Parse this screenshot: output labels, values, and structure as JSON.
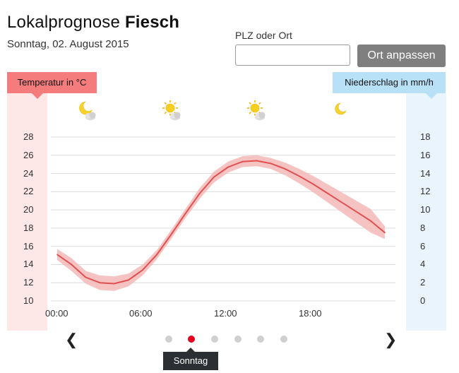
{
  "header": {
    "title_prefix": "Lokalprognose",
    "title_location": "Fiesch",
    "date": "Sonntag, 02. August 2015"
  },
  "search": {
    "label": "PLZ oder Ort",
    "value": "",
    "placeholder": "",
    "button_label": "Ort anpassen"
  },
  "legend": {
    "temperature_label": "Temperatur in °C",
    "precipitation_label": "Niederschlag in mm/h"
  },
  "weather_icons": [
    {
      "time": "03:00",
      "icon": "moon-cloud-icon"
    },
    {
      "time": "09:00",
      "icon": "sun-cloud-icon"
    },
    {
      "time": "15:00",
      "icon": "sun-cloud-icon"
    },
    {
      "time": "21:00",
      "icon": "moon-icon"
    }
  ],
  "chart_data": {
    "type": "line",
    "x_tick_labels": [
      "00:00",
      "06:00",
      "12:00",
      "18:00"
    ],
    "x_range_hours": [
      0,
      24
    ],
    "y_left": {
      "label": "Temperatur in °C",
      "ticks": [
        "10",
        "12",
        "14",
        "16",
        "18",
        "20",
        "22",
        "24",
        "26",
        "28"
      ],
      "range": [
        10,
        28
      ]
    },
    "y_right": {
      "label": "Niederschlag in mm/h",
      "ticks": [
        "0",
        "2",
        "4",
        "6",
        "8",
        "10",
        "12",
        "14",
        "16",
        "18"
      ],
      "range": [
        0,
        18
      ]
    },
    "grid": true,
    "series": [
      {
        "x": [
          0,
          1,
          2,
          3,
          4,
          5,
          6,
          7,
          8,
          9,
          10,
          11,
          12,
          13,
          14,
          15,
          16,
          17,
          18,
          19,
          20,
          21,
          22,
          23
        ],
        "values": [
          15.1,
          14.0,
          12.6,
          12.0,
          11.9,
          12.3,
          13.4,
          15.1,
          17.3,
          19.6,
          21.8,
          23.6,
          24.7,
          25.3,
          25.4,
          25.1,
          24.5,
          23.7,
          22.8,
          21.8,
          20.8,
          19.8,
          18.8,
          17.5
        ],
        "lower": [
          14.5,
          13.3,
          11.9,
          11.2,
          11.1,
          11.6,
          12.8,
          14.6,
          16.8,
          19.1,
          21.2,
          23.0,
          24.1,
          24.7,
          24.8,
          24.5,
          23.8,
          22.9,
          21.9,
          20.8,
          19.7,
          18.6,
          17.5,
          16.8
        ],
        "upper": [
          15.7,
          14.7,
          13.3,
          12.8,
          12.7,
          13.0,
          14.0,
          15.6,
          17.8,
          20.1,
          22.4,
          24.2,
          25.3,
          25.9,
          26.0,
          25.7,
          25.2,
          24.5,
          23.7,
          22.8,
          21.9,
          21.0,
          20.1,
          18.2
        ]
      }
    ],
    "colors": {
      "line": "#e05050",
      "band": "#f5b8b8"
    }
  },
  "pager": {
    "prev_icon": "chevron-left-icon",
    "next_icon": "chevron-right-icon",
    "dot_count": 6,
    "active_index": 1,
    "tooltip": "Sonntag"
  }
}
